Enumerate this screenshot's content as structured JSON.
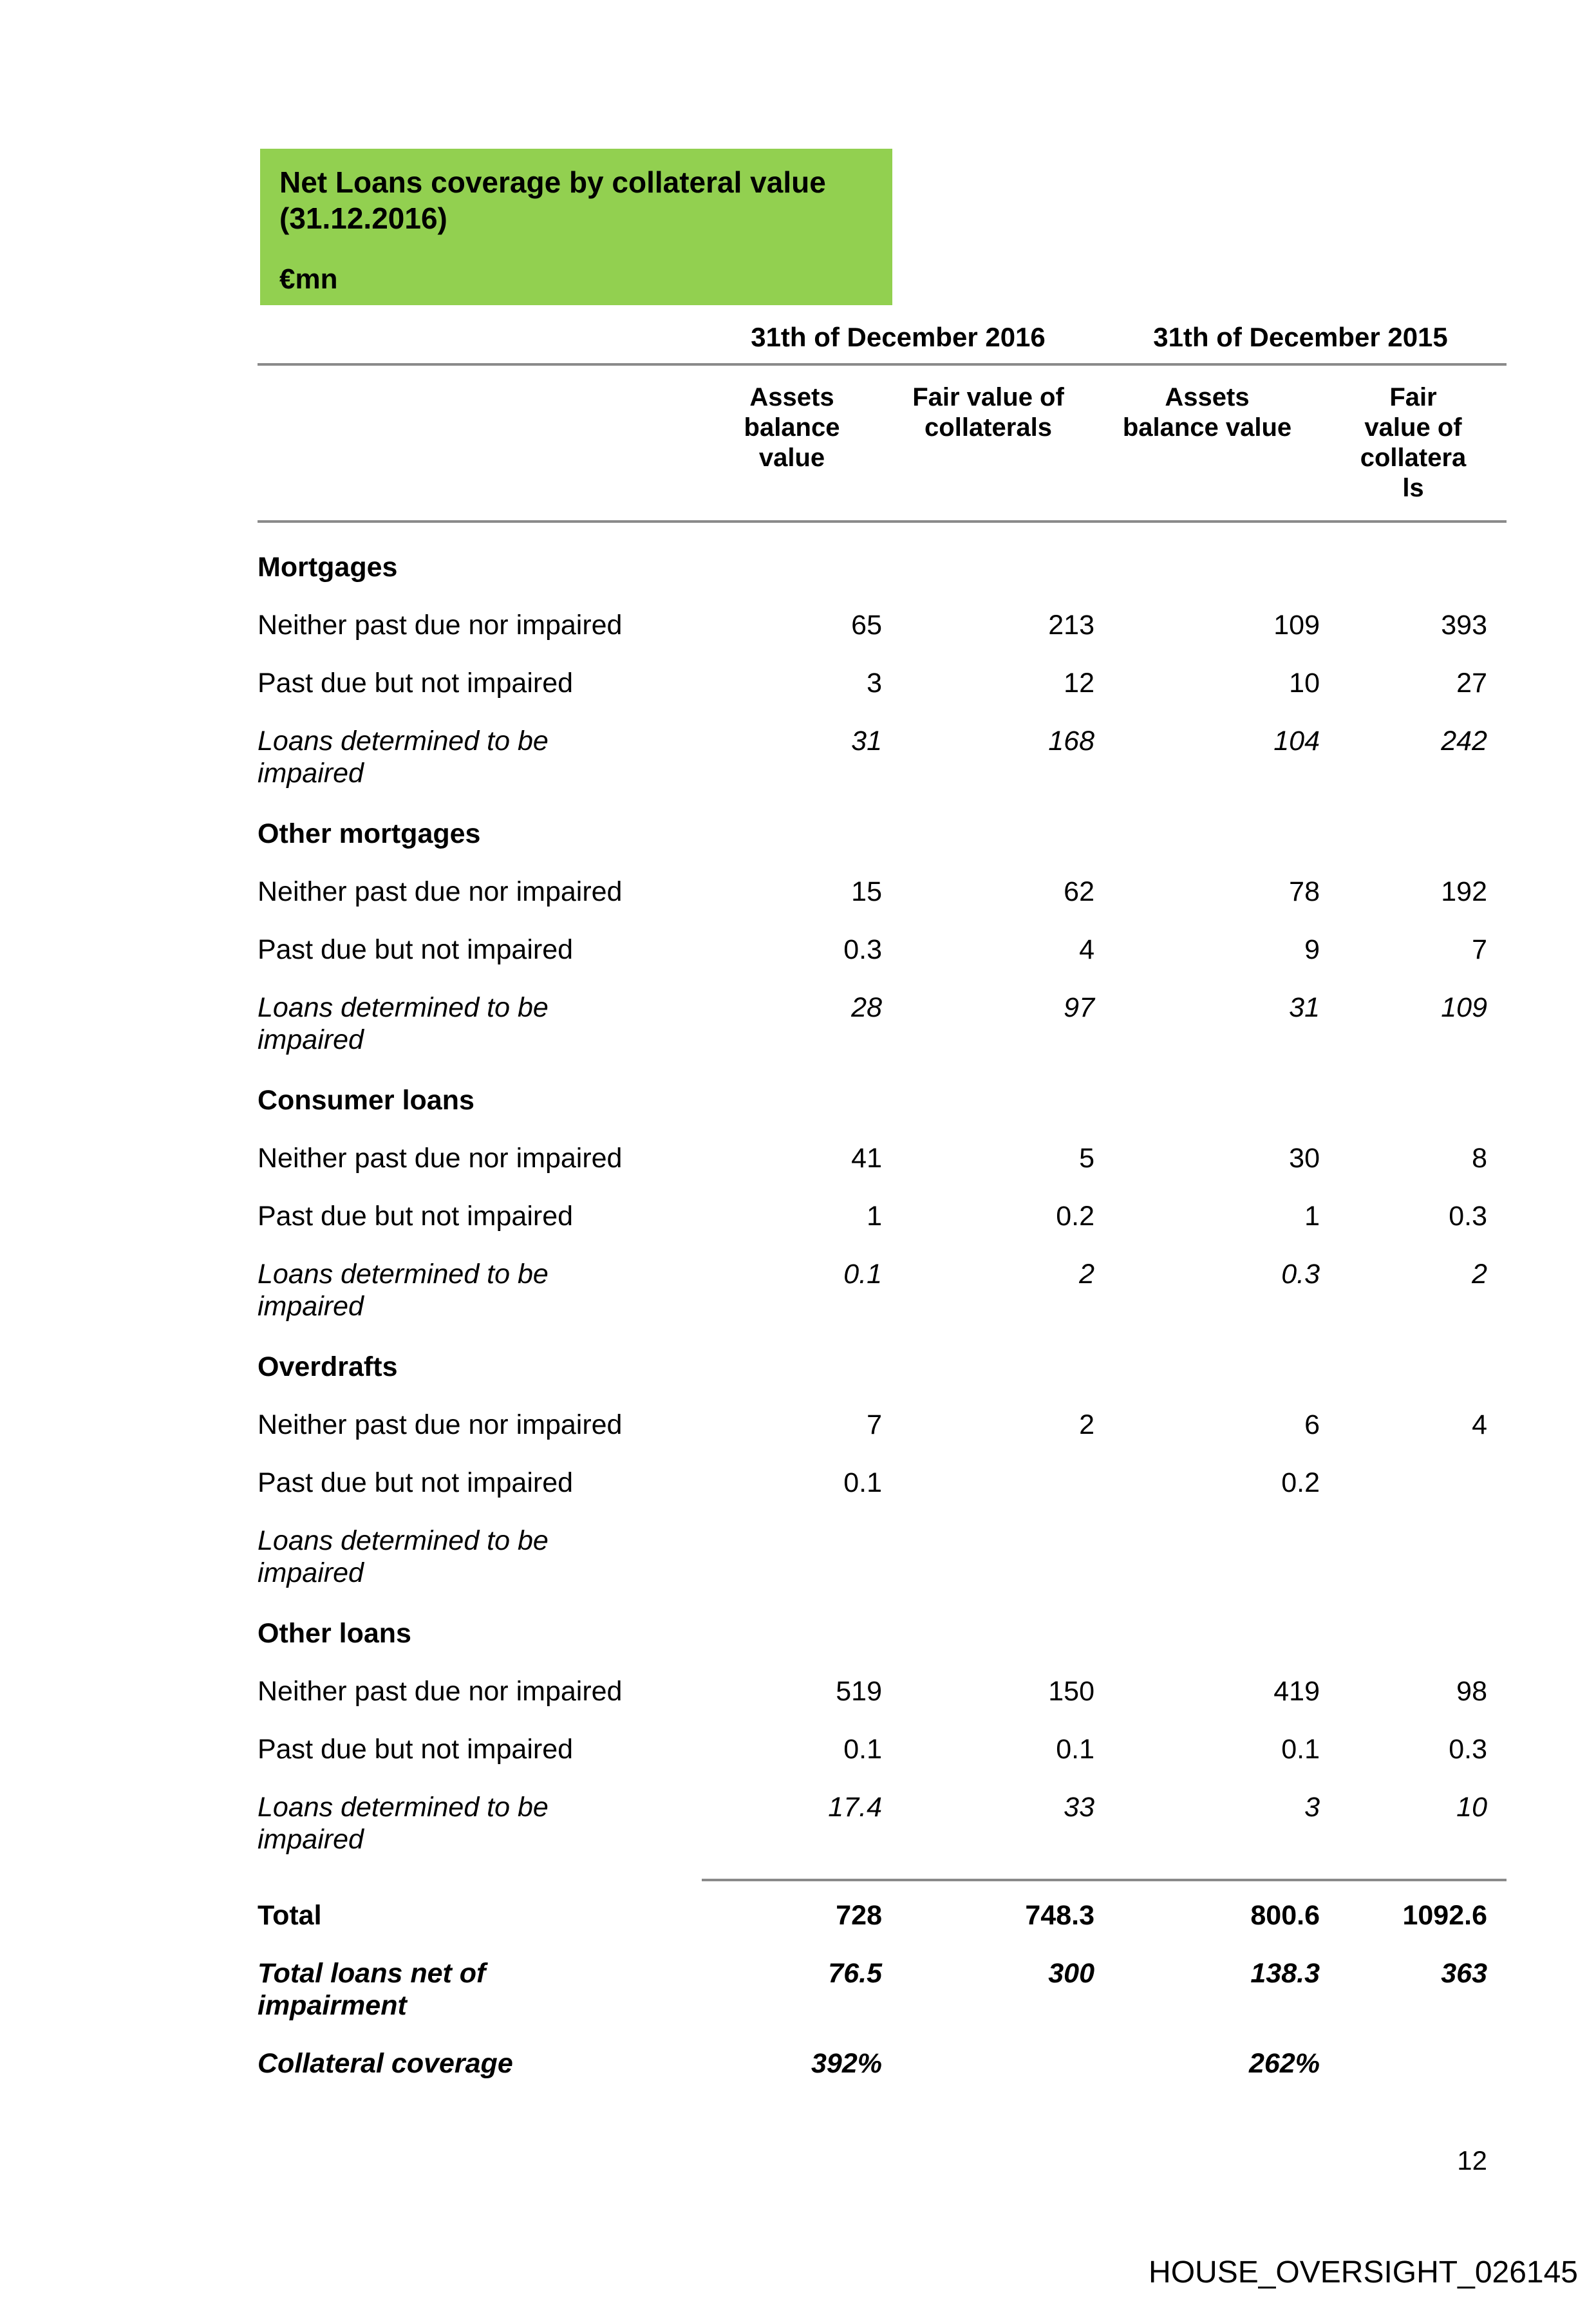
{
  "header_box": {
    "title": "Net Loans coverage by collateral value (31.12.2016)",
    "unit": "€mn",
    "bg_color": "#92D050"
  },
  "table": {
    "group_headers": {
      "y2016": "31th of December 2016",
      "y2015": "31th of December 2015"
    },
    "sub_headers": {
      "col1": "Assets balance value",
      "col2": "Fair value of collaterals",
      "col3": "Assets balance value",
      "col4": "Fair value of collaterals"
    },
    "rule_color": "#8a8a8a",
    "rows": [
      {
        "label": "Mortgages",
        "c1": "",
        "c2": "",
        "c3": "",
        "c4": ""
      },
      {
        "label": "Neither past due nor impaired",
        "c1": "65",
        "c2": "213",
        "c3": "109",
        "c4": "393"
      },
      {
        "label": "Past due but not impaired",
        "c1": "3",
        "c2": "12",
        "c3": "10",
        "c4": "27"
      },
      {
        "label": "Loans determined to be impaired",
        "c1": "31",
        "c2": "168",
        "c3": "104",
        "c4": "242"
      },
      {
        "label": "Other mortgages",
        "c1": "",
        "c2": "",
        "c3": "",
        "c4": ""
      },
      {
        "label": "Neither past due nor impaired",
        "c1": "15",
        "c2": "62",
        "c3": "78",
        "c4": "192"
      },
      {
        "label": "Past due but not impaired",
        "c1": "0.3",
        "c2": "4",
        "c3": "9",
        "c4": "7"
      },
      {
        "label": "Loans determined to be impaired",
        "c1": "28",
        "c2": "97",
        "c3": "31",
        "c4": "109"
      },
      {
        "label": "Consumer loans",
        "c1": "",
        "c2": "",
        "c3": "",
        "c4": ""
      },
      {
        "label": "Neither past due nor impaired",
        "c1": "41",
        "c2": "5",
        "c3": "30",
        "c4": "8"
      },
      {
        "label": "Past due but not impaired",
        "c1": "1",
        "c2": "0.2",
        "c3": "1",
        "c4": "0.3"
      },
      {
        "label": "Loans determined to be impaired",
        "c1": "0.1",
        "c2": "2",
        "c3": "0.3",
        "c4": "2"
      },
      {
        "label": "Overdrafts",
        "c1": "",
        "c2": "",
        "c3": "",
        "c4": ""
      },
      {
        "label": "Neither past due nor impaired",
        "c1": "7",
        "c2": "2",
        "c3": "6",
        "c4": "4"
      },
      {
        "label": "Past due but not impaired",
        "c1": "0.1",
        "c2": "",
        "c3": "0.2",
        "c4": ""
      },
      {
        "label": "Loans determined to be impaired",
        "c1": "",
        "c2": "",
        "c3": "",
        "c4": ""
      },
      {
        "label": "Other loans",
        "c1": "",
        "c2": "",
        "c3": "",
        "c4": ""
      },
      {
        "label": "Neither past due nor impaired",
        "c1": "519",
        "c2": "150",
        "c3": "419",
        "c4": "98"
      },
      {
        "label": "Past due but not impaired",
        "c1": "0.1",
        "c2": "0.1",
        "c3": "0.1",
        "c4": "0.3"
      },
      {
        "label": "Loans determined to be impaired",
        "c1": "17.4",
        "c2": "33",
        "c3": "3",
        "c4": "10"
      },
      {
        "label": "Total",
        "c1": "728",
        "c2": "748.3",
        "c3": "800.6",
        "c4": "1092.6"
      },
      {
        "label": "Total loans net of impairment",
        "c1": "76.5",
        "c2": "300",
        "c3": "138.3",
        "c4": "363"
      },
      {
        "label": "Collateral coverage",
        "c1": "392%",
        "c2": "",
        "c3": "262%",
        "c4": ""
      }
    ]
  },
  "footer": {
    "page_number": "12",
    "bates_number": "HOUSE_OVERSIGHT_026145"
  }
}
